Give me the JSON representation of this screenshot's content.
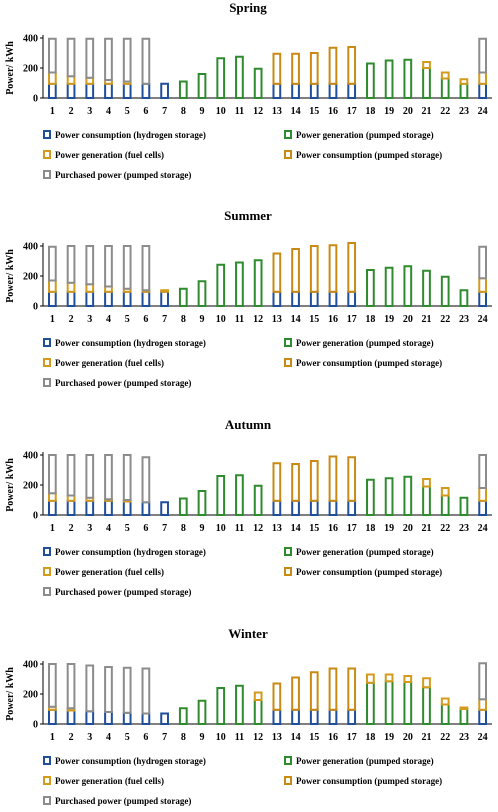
{
  "chart_data": [
    {
      "type": "bar",
      "stacked": true,
      "title": "Spring",
      "ylabel": "Power/ kWh",
      "ylim": [
        0,
        400
      ],
      "yticks": [
        0,
        200,
        400
      ],
      "categories": [
        "1",
        "2",
        "3",
        "4",
        "5",
        "6",
        "7",
        "8",
        "9",
        "10",
        "11",
        "12",
        "13",
        "14",
        "15",
        "16",
        "17",
        "18",
        "19",
        "20",
        "21",
        "22",
        "23",
        "24"
      ],
      "series": [
        {
          "name": "Power consumption (hydrogen storage)",
          "color": "#1f4e9a",
          "values": [
            95,
            95,
            95,
            95,
            95,
            95,
            95,
            0,
            0,
            0,
            0,
            0,
            95,
            95,
            95,
            95,
            95,
            0,
            0,
            0,
            0,
            0,
            0,
            95
          ]
        },
        {
          "name": "Power generation (pumped storage)",
          "color": "#2e8b2e",
          "values": [
            0,
            0,
            0,
            0,
            0,
            0,
            0,
            110,
            160,
            265,
            275,
            195,
            0,
            0,
            0,
            0,
            0,
            230,
            250,
            255,
            200,
            130,
            95,
            0
          ]
        },
        {
          "name": "Power generation (fuel cells)",
          "color": "#d39a1c",
          "values": [
            75,
            50,
            40,
            25,
            15,
            0,
            0,
            0,
            0,
            0,
            0,
            0,
            0,
            0,
            0,
            0,
            0,
            0,
            0,
            0,
            40,
            40,
            30,
            75
          ]
        },
        {
          "name": "Power consumption (pumped storage)",
          "color": "#c88a14",
          "values": [
            0,
            0,
            0,
            0,
            0,
            0,
            0,
            0,
            0,
            0,
            0,
            0,
            200,
            200,
            205,
            240,
            245,
            0,
            0,
            0,
            0,
            0,
            0,
            0
          ]
        },
        {
          "name": "Purchased power (pumped storage)",
          "color": "#8c8c8c",
          "values": [
            225,
            250,
            260,
            275,
            285,
            300,
            0,
            0,
            0,
            0,
            0,
            0,
            0,
            0,
            0,
            0,
            0,
            0,
            0,
            0,
            0,
            0,
            0,
            225
          ]
        }
      ]
    },
    {
      "type": "bar",
      "stacked": true,
      "title": "Summer",
      "ylabel": "Power/ kWh",
      "ylim": [
        0,
        400
      ],
      "yticks": [
        0,
        200,
        400
      ],
      "categories": [
        "1",
        "2",
        "3",
        "4",
        "5",
        "6",
        "7",
        "8",
        "9",
        "10",
        "11",
        "12",
        "13",
        "14",
        "15",
        "16",
        "17",
        "18",
        "19",
        "20",
        "21",
        "22",
        "23",
        "24"
      ],
      "series": [
        {
          "name": "Power consumption (hydrogen storage)",
          "color": "#1f4e9a",
          "values": [
            95,
            95,
            95,
            95,
            95,
            95,
            95,
            0,
            0,
            0,
            0,
            0,
            95,
            95,
            95,
            95,
            95,
            0,
            0,
            0,
            0,
            0,
            0,
            95
          ]
        },
        {
          "name": "Power generation (pumped storage)",
          "color": "#2e8b2e",
          "values": [
            0,
            0,
            0,
            0,
            0,
            0,
            0,
            115,
            165,
            275,
            290,
            305,
            0,
            0,
            0,
            0,
            0,
            240,
            255,
            265,
            235,
            195,
            105,
            0
          ]
        },
        {
          "name": "Power generation (fuel cells)",
          "color": "#d39a1c",
          "values": [
            75,
            60,
            50,
            35,
            20,
            10,
            10,
            0,
            0,
            0,
            0,
            0,
            0,
            0,
            0,
            0,
            0,
            0,
            0,
            0,
            0,
            0,
            0,
            90
          ]
        },
        {
          "name": "Power consumption (pumped storage)",
          "color": "#c88a14",
          "values": [
            0,
            0,
            0,
            0,
            0,
            0,
            0,
            0,
            0,
            0,
            0,
            0,
            255,
            285,
            305,
            310,
            325,
            0,
            0,
            0,
            0,
            0,
            0,
            0
          ]
        },
        {
          "name": "Purchased power (pumped storage)",
          "color": "#8c8c8c",
          "values": [
            225,
            245,
            255,
            270,
            285,
            295,
            0,
            0,
            0,
            0,
            0,
            0,
            0,
            0,
            0,
            0,
            0,
            0,
            0,
            0,
            0,
            0,
            0,
            210
          ]
        }
      ]
    },
    {
      "type": "bar",
      "stacked": true,
      "title": "Autumn",
      "ylabel": "Power/ kWh",
      "ylim": [
        0,
        400
      ],
      "yticks": [
        0,
        200,
        400
      ],
      "categories": [
        "1",
        "2",
        "3",
        "4",
        "5",
        "6",
        "7",
        "8",
        "9",
        "10",
        "11",
        "12",
        "13",
        "14",
        "15",
        "16",
        "17",
        "18",
        "19",
        "20",
        "21",
        "22",
        "23",
        "24"
      ],
      "series": [
        {
          "name": "Power consumption (hydrogen storage)",
          "color": "#1f4e9a",
          "values": [
            95,
            95,
            95,
            95,
            90,
            85,
            85,
            0,
            0,
            0,
            0,
            0,
            95,
            95,
            95,
            95,
            95,
            0,
            0,
            0,
            0,
            0,
            0,
            95
          ]
        },
        {
          "name": "Power generation (pumped storage)",
          "color": "#2e8b2e",
          "values": [
            0,
            0,
            0,
            0,
            0,
            0,
            0,
            110,
            160,
            260,
            265,
            195,
            0,
            0,
            0,
            0,
            0,
            235,
            245,
            255,
            190,
            130,
            115,
            0
          ]
        },
        {
          "name": "Power generation (fuel cells)",
          "color": "#d39a1c",
          "values": [
            50,
            35,
            20,
            10,
            10,
            0,
            0,
            0,
            0,
            0,
            0,
            0,
            0,
            0,
            0,
            0,
            0,
            0,
            0,
            0,
            50,
            50,
            0,
            85
          ]
        },
        {
          "name": "Power consumption (pumped storage)",
          "color": "#c88a14",
          "values": [
            0,
            0,
            0,
            0,
            0,
            0,
            0,
            0,
            0,
            0,
            0,
            0,
            250,
            245,
            265,
            295,
            290,
            0,
            0,
            0,
            0,
            0,
            0,
            0
          ]
        },
        {
          "name": "Purchased power (pumped storage)",
          "color": "#8c8c8c",
          "values": [
            255,
            270,
            285,
            295,
            300,
            300,
            0,
            0,
            0,
            0,
            0,
            0,
            0,
            0,
            0,
            0,
            0,
            0,
            0,
            0,
            0,
            0,
            0,
            220
          ]
        }
      ]
    },
    {
      "type": "bar",
      "stacked": true,
      "title": "Winter",
      "ylabel": "Power/ kWh",
      "ylim": [
        0,
        400
      ],
      "yticks": [
        0,
        200,
        400
      ],
      "categories": [
        "1",
        "2",
        "3",
        "4",
        "5",
        "6",
        "7",
        "8",
        "9",
        "10",
        "11",
        "12",
        "13",
        "14",
        "15",
        "16",
        "17",
        "18",
        "19",
        "20",
        "21",
        "22",
        "23",
        "24"
      ],
      "series": [
        {
          "name": "Power consumption (hydrogen storage)",
          "color": "#1f4e9a",
          "values": [
            95,
            90,
            85,
            80,
            75,
            70,
            70,
            0,
            0,
            0,
            0,
            0,
            95,
            95,
            95,
            95,
            95,
            0,
            0,
            0,
            0,
            0,
            0,
            95
          ]
        },
        {
          "name": "Power generation (pumped storage)",
          "color": "#2e8b2e",
          "values": [
            0,
            0,
            0,
            0,
            0,
            0,
            0,
            105,
            155,
            240,
            255,
            160,
            0,
            0,
            0,
            0,
            0,
            275,
            285,
            280,
            245,
            130,
            100,
            0
          ]
        },
        {
          "name": "Power generation (fuel cells)",
          "color": "#d39a1c",
          "values": [
            20,
            15,
            0,
            0,
            0,
            0,
            0,
            0,
            0,
            0,
            0,
            50,
            0,
            0,
            0,
            0,
            0,
            55,
            45,
            40,
            60,
            40,
            10,
            70
          ]
        },
        {
          "name": "Power consumption (pumped storage)",
          "color": "#c88a14",
          "values": [
            0,
            0,
            0,
            0,
            0,
            0,
            0,
            0,
            0,
            0,
            0,
            0,
            175,
            215,
            250,
            275,
            275,
            0,
            0,
            0,
            0,
            0,
            0,
            0
          ]
        },
        {
          "name": "Purchased power (pumped storage)",
          "color": "#8c8c8c",
          "values": [
            285,
            295,
            305,
            300,
            300,
            300,
            0,
            0,
            0,
            0,
            0,
            0,
            0,
            0,
            0,
            0,
            0,
            0,
            0,
            0,
            0,
            0,
            0,
            240
          ]
        }
      ]
    }
  ]
}
